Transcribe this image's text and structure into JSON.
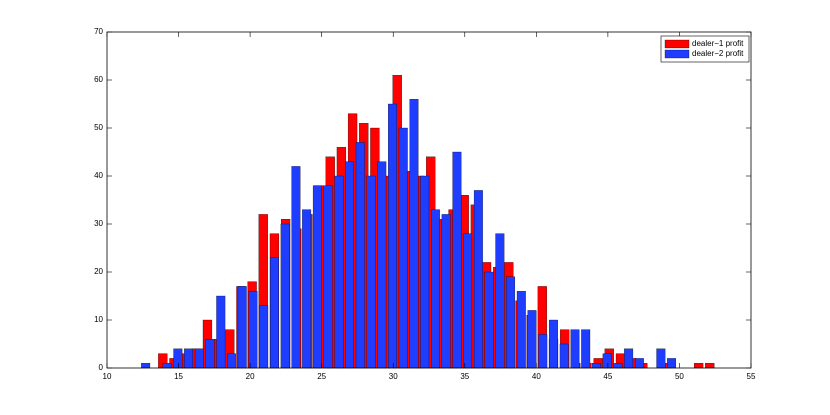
{
  "chart_data": {
    "type": "bar",
    "xlim": [
      10,
      55
    ],
    "ylim": [
      0,
      70
    ],
    "xticks": [
      10,
      15,
      20,
      25,
      30,
      35,
      40,
      45,
      50,
      55
    ],
    "yticks": [
      0,
      10,
      20,
      30,
      40,
      50,
      60,
      70
    ],
    "grid": false,
    "legend": "northeast",
    "series": [
      {
        "name": "dealer−1 profit",
        "color": "#ff0000",
        "x": [
          13.9,
          14.68,
          15.46,
          16.24,
          17.02,
          17.8,
          18.58,
          19.36,
          20.14,
          20.92,
          21.7,
          22.48,
          23.26,
          24.04,
          24.82,
          25.6,
          26.38,
          27.16,
          27.94,
          28.72,
          29.5,
          30.28,
          31.06,
          31.84,
          32.62,
          33.4,
          34.18,
          34.96,
          35.74,
          36.52,
          37.3,
          38.08,
          38.86,
          39.64,
          40.42,
          41.2,
          41.98,
          42.76,
          43.54,
          44.32,
          45.1,
          45.88,
          46.66,
          47.44,
          48.22,
          49.0,
          49.78,
          50.56,
          51.34,
          52.12
        ],
        "values": [
          3,
          2,
          3,
          4,
          10,
          6,
          8,
          17,
          18,
          32,
          28,
          31,
          29,
          32,
          38,
          44,
          46,
          53,
          51,
          50,
          40,
          61,
          41,
          40,
          44,
          31,
          33,
          36,
          34,
          22,
          21,
          22,
          14,
          11,
          17,
          6,
          8,
          1,
          1,
          2,
          4,
          3,
          2,
          1,
          0,
          1,
          0,
          0,
          1,
          1
        ]
      },
      {
        "name": "dealer−2 profit",
        "color": "#1f3dff",
        "x": [
          12.7,
          13.45,
          14.2,
          14.95,
          15.7,
          16.45,
          17.2,
          17.95,
          18.7,
          19.45,
          20.2,
          20.95,
          21.7,
          22.45,
          23.2,
          23.95,
          24.7,
          25.45,
          26.2,
          26.95,
          27.7,
          28.45,
          29.2,
          29.95,
          30.7,
          31.45,
          32.2,
          32.95,
          33.7,
          34.45,
          35.2,
          35.95,
          36.7,
          37.45,
          38.2,
          38.95,
          39.7,
          40.45,
          41.2,
          41.95,
          42.7,
          43.45,
          44.2,
          44.95,
          45.7,
          46.45,
          47.2,
          47.95,
          48.7,
          49.45
        ],
        "values": [
          1,
          0,
          1,
          4,
          4,
          4,
          6,
          15,
          3,
          17,
          16,
          13,
          23,
          30,
          42,
          33,
          38,
          38,
          40,
          43,
          47,
          40,
          43,
          55,
          50,
          56,
          40,
          33,
          32,
          45,
          28,
          37,
          20,
          28,
          19,
          16,
          12,
          7,
          10,
          5,
          8,
          8,
          1,
          3,
          1,
          4,
          2,
          0,
          4,
          2
        ]
      }
    ]
  }
}
